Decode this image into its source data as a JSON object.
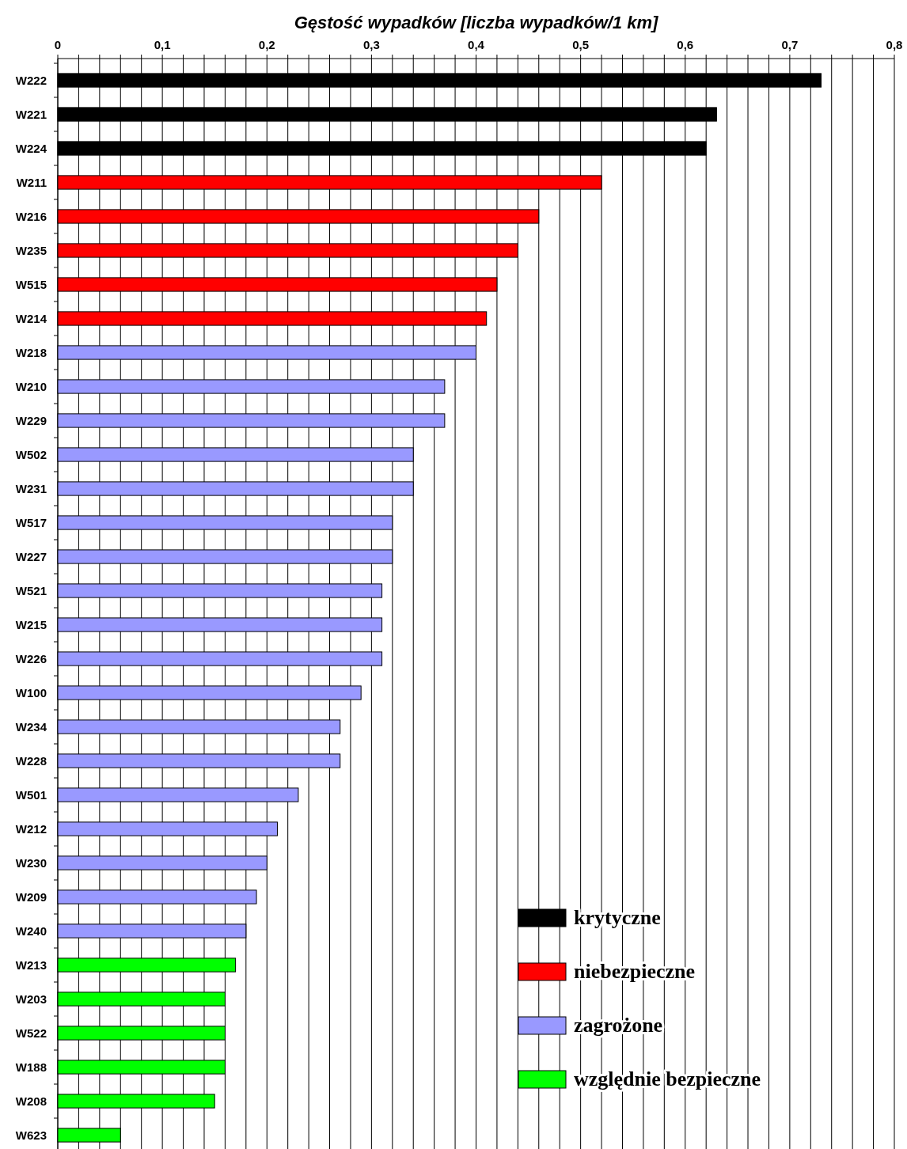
{
  "chart_data": {
    "type": "bar",
    "orientation": "horizontal",
    "title": "Gęstość wypadków [liczba wypadków/1 km]",
    "categories": [
      "W222",
      "W221",
      "W224",
      "W211",
      "W216",
      "W235",
      "W515",
      "W214",
      "W218",
      "W210",
      "W229",
      "W502",
      "W231",
      "W517",
      "W227",
      "W521",
      "W215",
      "W226",
      "W100",
      "W234",
      "W228",
      "W501",
      "W212",
      "W230",
      "W209",
      "W240",
      "W213",
      "W203",
      "W522",
      "W188",
      "W208",
      "W623"
    ],
    "series": [
      {
        "name": "krytyczne",
        "color": "#000000",
        "values": [
          0.73,
          0.63,
          0.62,
          null,
          null,
          null,
          null,
          null,
          null,
          null,
          null,
          null,
          null,
          null,
          null,
          null,
          null,
          null,
          null,
          null,
          null,
          null,
          null,
          null,
          null,
          null,
          null,
          null,
          null,
          null,
          null,
          null
        ]
      },
      {
        "name": "niebezpieczne",
        "color": "#ff0000",
        "values": [
          null,
          null,
          null,
          0.52,
          0.46,
          0.44,
          0.42,
          0.41,
          null,
          null,
          null,
          null,
          null,
          null,
          null,
          null,
          null,
          null,
          null,
          null,
          null,
          null,
          null,
          null,
          null,
          null,
          null,
          null,
          null,
          null,
          null,
          null
        ]
      },
      {
        "name": "zagrożone",
        "color": "#9999ff",
        "values": [
          null,
          null,
          null,
          null,
          null,
          null,
          null,
          null,
          0.4,
          0.37,
          0.37,
          0.34,
          0.34,
          0.32,
          0.32,
          0.31,
          0.31,
          0.31,
          0.29,
          0.27,
          0.27,
          0.23,
          0.21,
          0.2,
          0.19,
          0.18,
          null,
          null,
          null,
          null,
          null,
          null
        ]
      },
      {
        "name": "względnie bezpieczne",
        "color": "#00ff00",
        "values": [
          null,
          null,
          null,
          null,
          null,
          null,
          null,
          null,
          null,
          null,
          null,
          null,
          null,
          null,
          null,
          null,
          null,
          null,
          null,
          null,
          null,
          null,
          null,
          null,
          null,
          null,
          0.17,
          0.16,
          0.16,
          0.16,
          0.15,
          0.06
        ]
      }
    ],
    "xlim": [
      0,
      0.8
    ],
    "xticks": [
      {
        "value": 0,
        "label": "0"
      },
      {
        "value": 0.02,
        "label": null
      },
      {
        "value": 0.04,
        "label": null
      },
      {
        "value": 0.06,
        "label": null
      },
      {
        "value": 0.08,
        "label": null
      },
      {
        "value": 0.1,
        "label": "0,1"
      },
      {
        "value": 0.12,
        "label": null
      },
      {
        "value": 0.14,
        "label": null
      },
      {
        "value": 0.16,
        "label": null
      },
      {
        "value": 0.18,
        "label": null
      },
      {
        "value": 0.2,
        "label": "0,2"
      },
      {
        "value": 0.22,
        "label": null
      },
      {
        "value": 0.24,
        "label": null
      },
      {
        "value": 0.26,
        "label": null
      },
      {
        "value": 0.28,
        "label": null
      },
      {
        "value": 0.3,
        "label": "0,3"
      },
      {
        "value": 0.32,
        "label": null
      },
      {
        "value": 0.34,
        "label": null
      },
      {
        "value": 0.36,
        "label": null
      },
      {
        "value": 0.38,
        "label": null
      },
      {
        "value": 0.4,
        "label": "0,4"
      },
      {
        "value": 0.42,
        "label": null
      },
      {
        "value": 0.44,
        "label": null
      },
      {
        "value": 0.46,
        "label": null
      },
      {
        "value": 0.48,
        "label": null
      },
      {
        "value": 0.5,
        "label": "0,5"
      },
      {
        "value": 0.52,
        "label": null
      },
      {
        "value": 0.54,
        "label": null
      },
      {
        "value": 0.56,
        "label": null
      },
      {
        "value": 0.58,
        "label": null
      },
      {
        "value": 0.6,
        "label": "0,6"
      },
      {
        "value": 0.62,
        "label": null
      },
      {
        "value": 0.64,
        "label": null
      },
      {
        "value": 0.66,
        "label": null
      },
      {
        "value": 0.68,
        "label": null
      },
      {
        "value": 0.7,
        "label": "0,7"
      },
      {
        "value": 0.72,
        "label": null
      },
      {
        "value": 0.74,
        "label": null
      },
      {
        "value": 0.76,
        "label": null
      },
      {
        "value": 0.78,
        "label": null
      },
      {
        "value": 0.8,
        "label": "0,8"
      }
    ],
    "grid": "x",
    "legend": "bottom right"
  }
}
